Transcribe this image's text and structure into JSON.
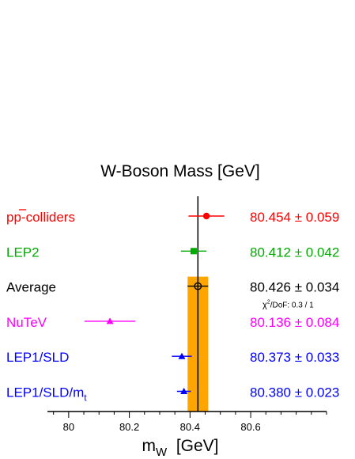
{
  "chart_data": {
    "type": "scatter",
    "subtype": "ideogram-error-bars",
    "title": "W-Boson Mass  [GeV]",
    "xlabel_main": "m",
    "xlabel_sub": "W",
    "xlabel_unit": "  [GeV]",
    "xlim": [
      79.93,
      80.85
    ],
    "xticks": [
      80,
      80.2,
      80.4,
      80.6
    ],
    "xtick_labels": [
      "80",
      "80.2",
      "80.4",
      "80.6"
    ],
    "minor_tick_step": 0.05,
    "average": {
      "value": 80.426,
      "error": 0.034,
      "band_color": "#ffa500"
    },
    "chi2_text": "χ",
    "chi2_sup": "2",
    "chi2_rest": "/DoF: 0.3 / 1",
    "measurements": [
      {
        "label": "pp",
        "label_extra": "-colliders",
        "label_overbar_on": "p",
        "value": 80.454,
        "error": 0.059,
        "value_text": "80.454",
        "error_text": "0.059",
        "marker": "circle",
        "color": "#ff0000"
      },
      {
        "label": "LEP2",
        "value": 80.412,
        "error": 0.042,
        "value_text": "80.412",
        "error_text": "0.042",
        "marker": "square",
        "color": "#00aa00"
      },
      {
        "label": "Average",
        "value": 80.426,
        "error": 0.034,
        "value_text": "80.426",
        "error_text": "0.034",
        "marker": "open-circle",
        "color": "#000000"
      },
      {
        "label": "NuTeV",
        "value": 80.136,
        "error": 0.084,
        "value_text": "80.136",
        "error_text": "0.084",
        "marker": "triangle",
        "color": "#ff00ff"
      },
      {
        "label": "LEP1/SLD",
        "value": 80.373,
        "error": 0.033,
        "value_text": "80.373",
        "error_text": "0.033",
        "marker": "triangle",
        "color": "#0000ff"
      },
      {
        "label": "LEP1/SLD/m",
        "label_sub": "t",
        "value": 80.38,
        "error": 0.023,
        "value_text": "80.380",
        "error_text": "0.023",
        "marker": "triangle",
        "color": "#0000ff"
      }
    ],
    "pm_symbol": "±"
  }
}
